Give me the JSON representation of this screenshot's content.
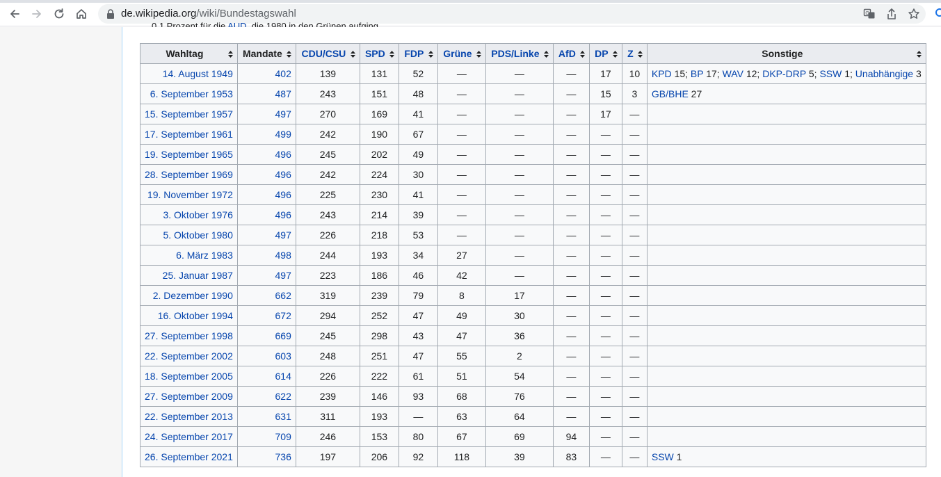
{
  "browser": {
    "url_domain": "de.wikipedia.org",
    "url_path": "/wiki/Bundestagswahl"
  },
  "clipped_line": {
    "before": "0,1 Prozent für die ",
    "link": "AUD",
    "after": ", die 1980 in den Grünen aufging"
  },
  "table": {
    "headers": [
      "Wahltag",
      "Mandate",
      "CDU/CSU",
      "SPD",
      "FDP",
      "Grüne",
      "PDS/Linke",
      "AfD",
      "DP",
      "Z",
      "Sonstige"
    ],
    "rows": [
      {
        "date": "14. August 1949",
        "mandate": "402",
        "cdu": "139",
        "spd": "131",
        "fdp": "52",
        "gruene": "—",
        "linke": "—",
        "afd": "—",
        "dp": "17",
        "z": "10",
        "sonstige": [
          {
            "link": "KPD",
            "val": " 15; "
          },
          {
            "link": "BP",
            "val": " 17; "
          },
          {
            "link": "WAV",
            "val": " 12; "
          },
          {
            "link": "DKP-DRP",
            "val": " 5; "
          },
          {
            "link": "SSW",
            "val": " 1; "
          },
          {
            "link": "Unabhängige",
            "val": " 3"
          }
        ]
      },
      {
        "date": "6. September 1953",
        "mandate": "487",
        "cdu": "243",
        "spd": "151",
        "fdp": "48",
        "gruene": "—",
        "linke": "—",
        "afd": "—",
        "dp": "15",
        "z": "3",
        "sonstige": [
          {
            "link": "GB/BHE",
            "val": " 27"
          }
        ]
      },
      {
        "date": "15. September 1957",
        "mandate": "497",
        "cdu": "270",
        "spd": "169",
        "fdp": "41",
        "gruene": "—",
        "linke": "—",
        "afd": "—",
        "dp": "17",
        "z": "—",
        "sonstige": []
      },
      {
        "date": "17. September 1961",
        "mandate": "499",
        "cdu": "242",
        "spd": "190",
        "fdp": "67",
        "gruene": "—",
        "linke": "—",
        "afd": "—",
        "dp": "—",
        "z": "—",
        "sonstige": []
      },
      {
        "date": "19. September 1965",
        "mandate": "496",
        "cdu": "245",
        "spd": "202",
        "fdp": "49",
        "gruene": "—",
        "linke": "—",
        "afd": "—",
        "dp": "—",
        "z": "—",
        "sonstige": []
      },
      {
        "date": "28. September 1969",
        "mandate": "496",
        "cdu": "242",
        "spd": "224",
        "fdp": "30",
        "gruene": "—",
        "linke": "—",
        "afd": "—",
        "dp": "—",
        "z": "—",
        "sonstige": []
      },
      {
        "date": "19. November 1972",
        "mandate": "496",
        "cdu": "225",
        "spd": "230",
        "fdp": "41",
        "gruene": "—",
        "linke": "—",
        "afd": "—",
        "dp": "—",
        "z": "—",
        "sonstige": []
      },
      {
        "date": "3. Oktober 1976",
        "mandate": "496",
        "cdu": "243",
        "spd": "214",
        "fdp": "39",
        "gruene": "—",
        "linke": "—",
        "afd": "—",
        "dp": "—",
        "z": "—",
        "sonstige": []
      },
      {
        "date": "5. Oktober 1980",
        "mandate": "497",
        "cdu": "226",
        "spd": "218",
        "fdp": "53",
        "gruene": "—",
        "linke": "—",
        "afd": "—",
        "dp": "—",
        "z": "—",
        "sonstige": []
      },
      {
        "date": "6. März 1983",
        "mandate": "498",
        "cdu": "244",
        "spd": "193",
        "fdp": "34",
        "gruene": "27",
        "linke": "—",
        "afd": "—",
        "dp": "—",
        "z": "—",
        "sonstige": []
      },
      {
        "date": "25. Januar 1987",
        "mandate": "497",
        "cdu": "223",
        "spd": "186",
        "fdp": "46",
        "gruene": "42",
        "linke": "—",
        "afd": "—",
        "dp": "—",
        "z": "—",
        "sonstige": []
      },
      {
        "date": "2. Dezember 1990",
        "mandate": "662",
        "cdu": "319",
        "spd": "239",
        "fdp": "79",
        "gruene": "8",
        "linke": "17",
        "afd": "—",
        "dp": "—",
        "z": "—",
        "sonstige": []
      },
      {
        "date": "16. Oktober 1994",
        "mandate": "672",
        "cdu": "294",
        "spd": "252",
        "fdp": "47",
        "gruene": "49",
        "linke": "30",
        "afd": "—",
        "dp": "—",
        "z": "—",
        "sonstige": []
      },
      {
        "date": "27. September 1998",
        "mandate": "669",
        "cdu": "245",
        "spd": "298",
        "fdp": "43",
        "gruene": "47",
        "linke": "36",
        "afd": "—",
        "dp": "—",
        "z": "—",
        "sonstige": []
      },
      {
        "date": "22. September 2002",
        "mandate": "603",
        "cdu": "248",
        "spd": "251",
        "fdp": "47",
        "gruene": "55",
        "linke": "2",
        "afd": "—",
        "dp": "—",
        "z": "—",
        "sonstige": []
      },
      {
        "date": "18. September 2005",
        "mandate": "614",
        "cdu": "226",
        "spd": "222",
        "fdp": "61",
        "gruene": "51",
        "linke": "54",
        "afd": "—",
        "dp": "—",
        "z": "—",
        "sonstige": []
      },
      {
        "date": "27. September 2009",
        "mandate": "622",
        "cdu": "239",
        "spd": "146",
        "fdp": "93",
        "gruene": "68",
        "linke": "76",
        "afd": "—",
        "dp": "—",
        "z": "—",
        "sonstige": []
      },
      {
        "date": "22. September 2013",
        "mandate": "631",
        "cdu": "311",
        "spd": "193",
        "fdp": "—",
        "gruene": "63",
        "linke": "64",
        "afd": "—",
        "dp": "—",
        "z": "—",
        "sonstige": []
      },
      {
        "date": "24. September 2017",
        "mandate": "709",
        "cdu": "246",
        "spd": "153",
        "fdp": "80",
        "gruene": "67",
        "linke": "69",
        "afd": "94",
        "dp": "—",
        "z": "—",
        "sonstige": []
      },
      {
        "date": "26. September 2021",
        "mandate": "736",
        "cdu": "197",
        "spd": "206",
        "fdp": "92",
        "gruene": "118",
        "linke": "39",
        "afd": "83",
        "dp": "—",
        "z": "—",
        "sonstige": [
          {
            "link": "SSW",
            "val": " 1"
          }
        ]
      }
    ]
  },
  "colors": {
    "link": "#0645ad",
    "header_bg": "#eaecf0",
    "cell_bg": "#f8f9fa",
    "border": "#a2a9b1"
  },
  "icons": [
    "back-arrow-icon",
    "forward-arrow-icon",
    "reload-icon",
    "home-icon",
    "lock-icon",
    "translate-icon",
    "share-icon",
    "bookmark-star-icon",
    "sort-icon"
  ]
}
